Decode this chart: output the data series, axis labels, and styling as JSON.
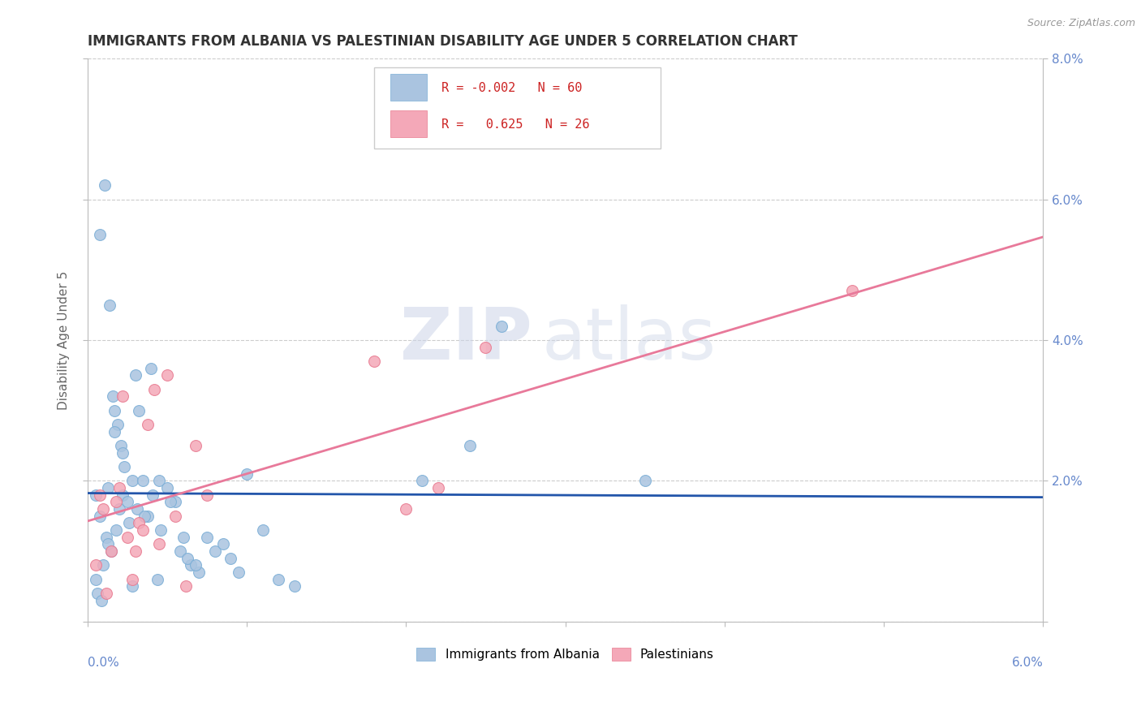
{
  "title": "IMMIGRANTS FROM ALBANIA VS PALESTINIAN DISABILITY AGE UNDER 5 CORRELATION CHART",
  "source": "Source: ZipAtlas.com",
  "ylabel": "Disability Age Under 5",
  "xlim": [
    0.0,
    6.0
  ],
  "ylim": [
    0.0,
    8.0
  ],
  "albania_color": "#aac4e0",
  "albania_color_dark": "#7aaed6",
  "palestinian_color": "#f4a8b8",
  "palestinian_color_dark": "#e87a90",
  "albania_line_color": "#2255aa",
  "palestinian_line_color": "#e8799a",
  "albania_R": -0.002,
  "albania_N": 60,
  "palestinian_R": 0.625,
  "palestinian_N": 26,
  "albania_scatter_x": [
    0.05,
    0.08,
    0.12,
    0.15,
    0.18,
    0.2,
    0.22,
    0.05,
    0.1,
    0.13,
    0.16,
    0.19,
    0.21,
    0.08,
    0.11,
    0.14,
    0.17,
    0.23,
    0.25,
    0.28,
    0.3,
    0.32,
    0.35,
    0.38,
    0.4,
    0.45,
    0.5,
    0.55,
    0.6,
    0.65,
    0.7,
    0.8,
    0.9,
    1.0,
    1.1,
    1.2,
    1.3,
    0.06,
    0.09,
    0.13,
    0.17,
    0.22,
    0.26,
    0.31,
    0.36,
    0.41,
    0.46,
    0.52,
    0.58,
    0.63,
    0.68,
    0.75,
    0.85,
    0.95,
    2.1,
    2.4,
    2.6,
    3.5,
    0.28,
    0.44
  ],
  "albania_scatter_y": [
    1.8,
    1.5,
    1.2,
    1.0,
    1.3,
    1.6,
    1.8,
    0.6,
    0.8,
    1.9,
    3.2,
    2.8,
    2.5,
    5.5,
    6.2,
    4.5,
    3.0,
    2.2,
    1.7,
    2.0,
    3.5,
    3.0,
    2.0,
    1.5,
    3.6,
    2.0,
    1.9,
    1.7,
    1.2,
    0.8,
    0.7,
    1.0,
    0.9,
    2.1,
    1.3,
    0.6,
    0.5,
    0.4,
    0.3,
    1.1,
    2.7,
    2.4,
    1.4,
    1.6,
    1.5,
    1.8,
    1.3,
    1.7,
    1.0,
    0.9,
    0.8,
    1.2,
    1.1,
    0.7,
    2.0,
    2.5,
    4.2,
    2.0,
    0.5,
    0.6
  ],
  "palestinian_scatter_x": [
    0.05,
    0.08,
    0.1,
    0.12,
    0.15,
    0.18,
    0.2,
    0.22,
    0.25,
    0.28,
    0.32,
    0.35,
    0.38,
    0.42,
    0.45,
    0.5,
    0.55,
    0.62,
    0.68,
    0.75,
    1.8,
    2.0,
    2.2,
    2.5,
    4.8,
    0.3
  ],
  "palestinian_scatter_y": [
    0.8,
    1.8,
    1.6,
    0.4,
    1.0,
    1.7,
    1.9,
    3.2,
    1.2,
    0.6,
    1.4,
    1.3,
    2.8,
    3.3,
    1.1,
    3.5,
    1.5,
    0.5,
    2.5,
    1.8,
    3.7,
    1.6,
    1.9,
    3.9,
    4.7,
    1.0
  ],
  "watermark_zip": "ZIP",
  "watermark_atlas": "atlas",
  "background_color": "#ffffff",
  "grid_color": "#cccccc",
  "axis_color": "#bbbbbb",
  "tick_label_color": "#6688cc",
  "title_color": "#333333",
  "ylabel_color": "#666666"
}
